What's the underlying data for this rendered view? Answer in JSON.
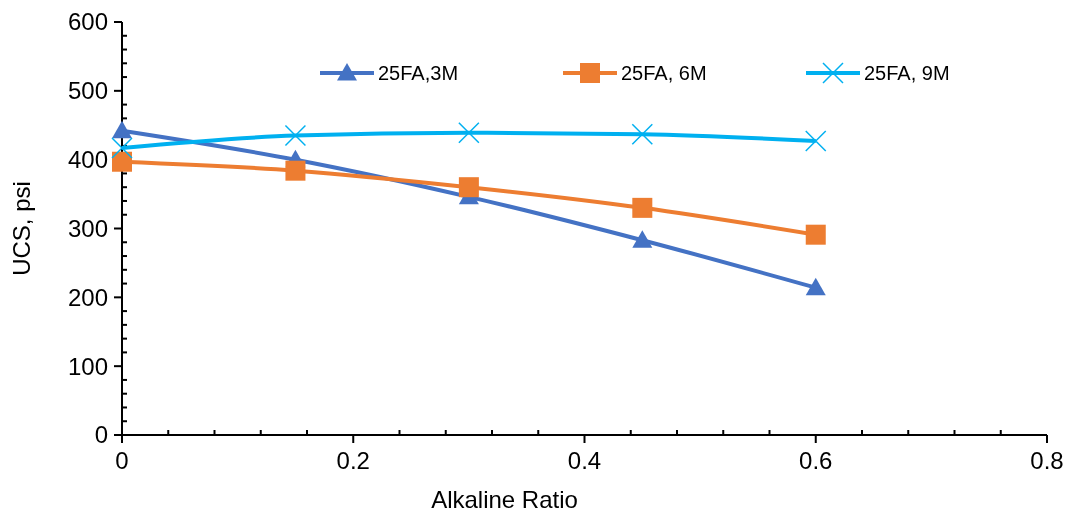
{
  "chart_data": {
    "type": "line",
    "xlabel": "Alkaline Ratio",
    "ylabel": "UCS, psi",
    "x": [
      0,
      0.15,
      0.3,
      0.45,
      0.6
    ],
    "series": [
      {
        "name": "25FA,3M",
        "color": "#4472c4",
        "marker": "triangle",
        "values": [
          442,
          400,
          346,
          283,
          214
        ]
      },
      {
        "name": "25FA, 6M",
        "color": "#ed7d31",
        "marker": "square",
        "values": [
          397,
          384,
          360,
          330,
          291
        ]
      },
      {
        "name": "25FA, 9M",
        "color": "#00b0f0",
        "marker": "cross",
        "values": [
          417,
          435,
          439,
          437,
          427
        ]
      }
    ],
    "xlim": [
      0,
      0.8
    ],
    "xticks": [
      0,
      0.2,
      0.4,
      0.6,
      0.8
    ],
    "ylim": [
      0,
      600
    ],
    "yticks": [
      0,
      100,
      200,
      300,
      400,
      500,
      600
    ],
    "grid": false,
    "legend": "top",
    "line_style": "solid"
  }
}
